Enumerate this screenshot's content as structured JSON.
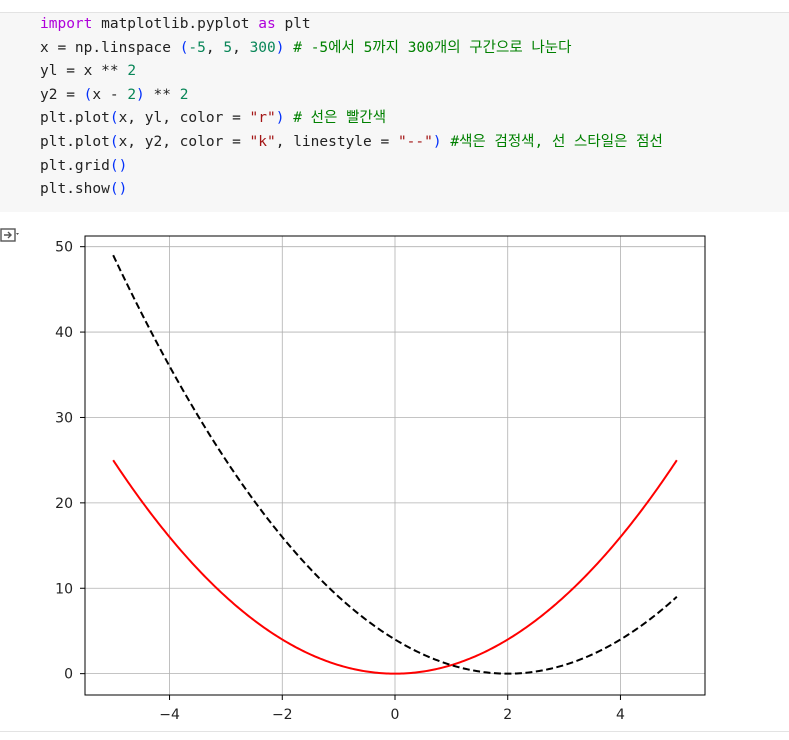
{
  "code_lines": [
    [
      {
        "t": "import",
        "c": "kw"
      },
      {
        "t": " matplotlib.pyplot "
      },
      {
        "t": "as",
        "c": "kw"
      },
      {
        "t": " plt"
      }
    ],
    [
      {
        "t": "x = np.linspace "
      },
      {
        "t": "(",
        "c": "par"
      },
      {
        "t": "-5",
        "c": "num"
      },
      {
        "t": ", "
      },
      {
        "t": "5",
        "c": "num"
      },
      {
        "t": ", "
      },
      {
        "t": "300",
        "c": "num"
      },
      {
        "t": ")",
        "c": "par"
      },
      {
        "t": " "
      },
      {
        "t": "# -5에서 5까지 300개의 구간으로 나눈다",
        "c": "cm"
      }
    ],
    [
      {
        "t": "yl = x ** "
      },
      {
        "t": "2",
        "c": "num"
      }
    ],
    [
      {
        "t": "y2 = "
      },
      {
        "t": "(",
        "c": "par"
      },
      {
        "t": "x - "
      },
      {
        "t": "2",
        "c": "num"
      },
      {
        "t": ")",
        "c": "par"
      },
      {
        "t": " ** "
      },
      {
        "t": "2",
        "c": "num"
      }
    ],
    [
      {
        "t": "plt.plot"
      },
      {
        "t": "(",
        "c": "par"
      },
      {
        "t": "x, yl, color = "
      },
      {
        "t": "\"r\"",
        "c": "str"
      },
      {
        "t": ")",
        "c": "par"
      },
      {
        "t": " "
      },
      {
        "t": "# 선은 빨간색",
        "c": "cm"
      }
    ],
    [
      {
        "t": "plt.plot"
      },
      {
        "t": "(",
        "c": "par"
      },
      {
        "t": "x, y2, color = "
      },
      {
        "t": "\"k\"",
        "c": "str"
      },
      {
        "t": ", linestyle = "
      },
      {
        "t": "\"--\"",
        "c": "str"
      },
      {
        "t": ")",
        "c": "par"
      },
      {
        "t": " "
      },
      {
        "t": "#색은 검정색, 선 스타일은 점선",
        "c": "cm"
      }
    ],
    [
      {
        "t": "plt.grid"
      },
      {
        "t": "()",
        "c": "par"
      }
    ],
    [
      {
        "t": "plt.show"
      },
      {
        "t": "()",
        "c": "par"
      }
    ]
  ],
  "output_icon": "output-toggle-icon",
  "chart_data": {
    "type": "line",
    "xlim": [
      -5.5,
      5.5
    ],
    "ylim": [
      -2.5,
      51.25
    ],
    "xticks": [
      -4,
      -2,
      0,
      2,
      4
    ],
    "xtick_labels": [
      "−4",
      "−2",
      "0",
      "2",
      "4"
    ],
    "yticks": [
      0,
      10,
      20,
      30,
      40,
      50
    ],
    "ytick_labels": [
      "0",
      "10",
      "20",
      "30",
      "40",
      "50"
    ],
    "grid": true,
    "series": [
      {
        "formula": "x^2",
        "color": "#ff0000",
        "linestyle": "solid",
        "x_range": [
          -5,
          5
        ],
        "points": 300
      },
      {
        "formula": "(x-2)^2",
        "color": "#000000",
        "linestyle": "dashed",
        "x_range": [
          -5,
          5
        ],
        "points": 300
      }
    ]
  }
}
